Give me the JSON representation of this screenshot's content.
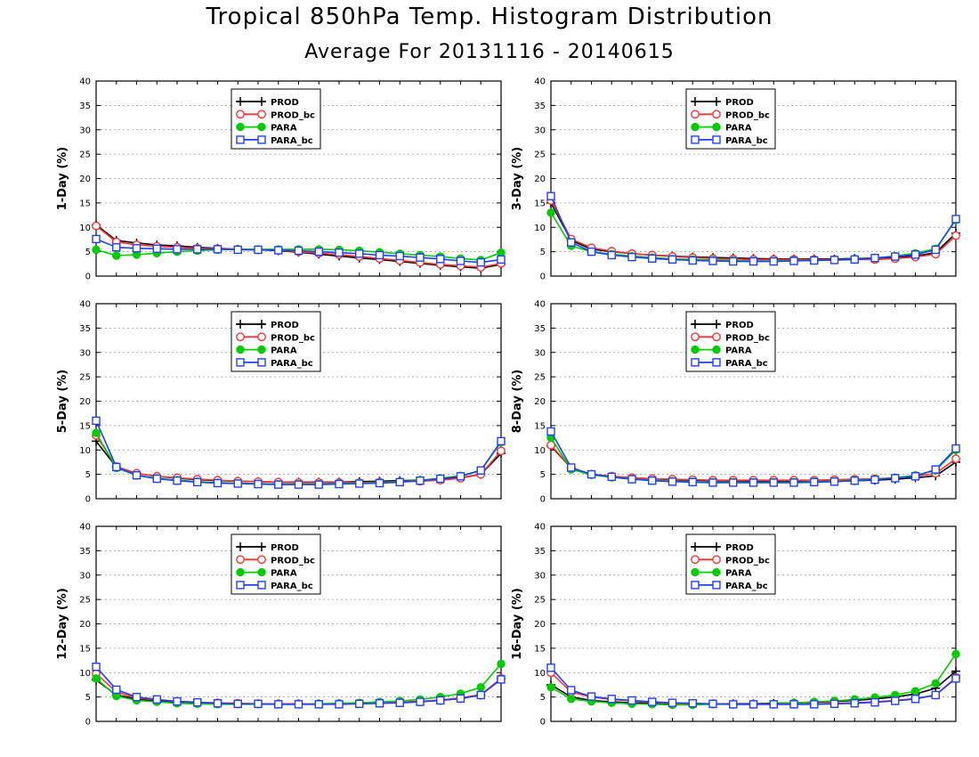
{
  "header": {
    "title": "Tropical 850hPa Temp. Histogram Distribution",
    "subtitle": "Average For 20131116 - 20140615"
  },
  "style": {
    "colors": {
      "PROD": "#000000",
      "PROD_bc": "#ff3333",
      "PARA": "#00cc00",
      "PARA_bc": "#1f3fff"
    },
    "markers": {
      "PROD": "plus",
      "PROD_bc": "open-circle",
      "PARA": "filled-circle",
      "PARA_bc": "open-square"
    }
  },
  "chart_data": [
    {
      "type": "line",
      "ylabel": "1-Day (%)",
      "ylim": [
        0,
        40
      ],
      "yticks": [
        0,
        5,
        10,
        15,
        20,
        25,
        30,
        35,
        40
      ],
      "grid": true,
      "legend": "top-center",
      "x": [
        1,
        2,
        3,
        4,
        5,
        6,
        7,
        8,
        9,
        10,
        11,
        12,
        13,
        14,
        15,
        16,
        17,
        18,
        19,
        20,
        21
      ],
      "series": [
        {
          "name": "PROD",
          "values": [
            10.5,
            7.3,
            6.8,
            6.4,
            6.2,
            5.9,
            5.7,
            5.5,
            5.4,
            5.2,
            4.9,
            4.5,
            4.1,
            3.7,
            3.4,
            3.0,
            2.6,
            2.2,
            1.9,
            1.6,
            2.4
          ]
        },
        {
          "name": "PROD_bc",
          "values": [
            10.3,
            7.0,
            6.4,
            6.1,
            5.9,
            5.7,
            5.6,
            5.5,
            5.4,
            5.3,
            5.0,
            4.7,
            4.4,
            4.0,
            3.6,
            3.2,
            2.8,
            2.4,
            2.1,
            1.8,
            2.6
          ]
        },
        {
          "name": "PARA",
          "values": [
            5.4,
            4.2,
            4.4,
            4.7,
            5.0,
            5.2,
            5.4,
            5.5,
            5.5,
            5.5,
            5.5,
            5.5,
            5.4,
            5.2,
            4.9,
            4.6,
            4.3,
            4.0,
            3.6,
            3.3,
            4.8
          ]
        },
        {
          "name": "PARA_bc",
          "values": [
            7.6,
            5.9,
            5.7,
            5.6,
            5.5,
            5.5,
            5.5,
            5.4,
            5.4,
            5.3,
            5.2,
            5.0,
            4.8,
            4.6,
            4.3,
            4.1,
            3.8,
            3.5,
            3.1,
            2.8,
            3.4
          ]
        }
      ]
    },
    {
      "type": "line",
      "ylabel": "3-Day (%)",
      "ylim": [
        0,
        40
      ],
      "yticks": [
        0,
        5,
        10,
        15,
        20,
        25,
        30,
        35,
        40
      ],
      "grid": true,
      "legend": "top-center",
      "x": [
        1,
        2,
        3,
        4,
        5,
        6,
        7,
        8,
        9,
        10,
        11,
        12,
        13,
        14,
        15,
        16,
        17,
        18,
        19,
        20,
        21
      ],
      "series": [
        {
          "name": "PROD",
          "values": [
            15.0,
            7.3,
            5.5,
            5.0,
            4.6,
            4.3,
            4.1,
            3.9,
            3.8,
            3.7,
            3.6,
            3.5,
            3.5,
            3.5,
            3.5,
            3.6,
            3.7,
            3.8,
            4.1,
            4.8,
            8.8
          ]
        },
        {
          "name": "PROD_bc",
          "values": [
            15.5,
            7.6,
            5.8,
            5.1,
            4.6,
            4.3,
            4.0,
            3.8,
            3.6,
            3.5,
            3.4,
            3.4,
            3.4,
            3.4,
            3.4,
            3.4,
            3.4,
            3.6,
            3.9,
            4.5,
            8.3
          ]
        },
        {
          "name": "PARA",
          "values": [
            13.0,
            6.2,
            5.0,
            4.5,
            4.1,
            3.8,
            3.5,
            3.4,
            3.3,
            3.2,
            3.1,
            3.1,
            3.2,
            3.2,
            3.3,
            3.5,
            3.7,
            4.1,
            4.7,
            5.6,
            11.5
          ]
        },
        {
          "name": "PARA_bc",
          "values": [
            16.4,
            6.9,
            5.0,
            4.3,
            3.9,
            3.6,
            3.4,
            3.2,
            3.1,
            3.0,
            3.0,
            3.0,
            3.1,
            3.2,
            3.3,
            3.4,
            3.7,
            4.0,
            4.4,
            5.4,
            11.7
          ]
        }
      ]
    },
    {
      "type": "line",
      "ylabel": "5-Day (%)",
      "ylim": [
        0,
        40
      ],
      "yticks": [
        0,
        5,
        10,
        15,
        20,
        25,
        30,
        35,
        40
      ],
      "grid": true,
      "legend": "top-center",
      "x": [
        1,
        2,
        3,
        4,
        5,
        6,
        7,
        8,
        9,
        10,
        11,
        12,
        13,
        14,
        15,
        16,
        17,
        18,
        19,
        20,
        21
      ],
      "series": [
        {
          "name": "PROD",
          "values": [
            11.8,
            6.5,
            5.2,
            4.6,
            4.2,
            3.9,
            3.7,
            3.6,
            3.5,
            3.4,
            3.4,
            3.4,
            3.4,
            3.5,
            3.6,
            3.7,
            3.8,
            4.0,
            4.3,
            5.0,
            9.3
          ]
        },
        {
          "name": "PROD_bc",
          "values": [
            13.0,
            6.6,
            5.2,
            4.6,
            4.3,
            4.0,
            3.8,
            3.6,
            3.5,
            3.4,
            3.3,
            3.3,
            3.3,
            3.3,
            3.4,
            3.5,
            3.6,
            3.8,
            4.2,
            5.0,
            9.8
          ]
        },
        {
          "name": "PARA",
          "values": [
            13.5,
            6.3,
            4.8,
            4.2,
            3.8,
            3.5,
            3.3,
            3.2,
            3.1,
            3.0,
            3.0,
            3.0,
            3.1,
            3.2,
            3.3,
            3.5,
            3.8,
            4.2,
            4.7,
            5.8,
            11.6
          ]
        },
        {
          "name": "PARA_bc",
          "values": [
            16.0,
            6.5,
            4.8,
            4.1,
            3.7,
            3.4,
            3.2,
            3.1,
            3.0,
            2.9,
            2.9,
            2.9,
            3.0,
            3.1,
            3.2,
            3.4,
            3.7,
            4.1,
            4.6,
            5.8,
            11.8
          ]
        }
      ]
    },
    {
      "type": "line",
      "ylabel": "8-Day (%)",
      "ylim": [
        0,
        40
      ],
      "yticks": [
        0,
        5,
        10,
        15,
        20,
        25,
        30,
        35,
        40
      ],
      "grid": true,
      "legend": "top-center",
      "x": [
        1,
        2,
        3,
        4,
        5,
        6,
        7,
        8,
        9,
        10,
        11,
        12,
        13,
        14,
        15,
        16,
        17,
        18,
        19,
        20,
        21
      ],
      "series": [
        {
          "name": "PROD",
          "values": [
            10.8,
            6.3,
            5.0,
            4.6,
            4.3,
            4.1,
            3.9,
            3.8,
            3.7,
            3.7,
            3.6,
            3.6,
            3.6,
            3.6,
            3.6,
            3.7,
            3.8,
            4.0,
            4.3,
            4.7,
            7.5
          ]
        },
        {
          "name": "PROD_bc",
          "values": [
            11.0,
            6.3,
            5.0,
            4.6,
            4.3,
            4.1,
            4.0,
            3.9,
            3.8,
            3.8,
            3.8,
            3.8,
            3.8,
            3.8,
            3.9,
            4.0,
            4.1,
            4.3,
            4.6,
            5.2,
            8.2
          ]
        },
        {
          "name": "PARA",
          "values": [
            12.5,
            6.0,
            4.9,
            4.4,
            4.0,
            3.8,
            3.6,
            3.5,
            3.4,
            3.4,
            3.4,
            3.4,
            3.4,
            3.5,
            3.6,
            3.8,
            4.0,
            4.3,
            4.8,
            5.8,
            10.0
          ]
        },
        {
          "name": "PARA_bc",
          "values": [
            13.8,
            6.4,
            5.0,
            4.5,
            4.0,
            3.7,
            3.5,
            3.4,
            3.3,
            3.3,
            3.3,
            3.3,
            3.3,
            3.4,
            3.5,
            3.7,
            3.9,
            4.2,
            4.6,
            6.0,
            10.3
          ]
        }
      ]
    },
    {
      "type": "line",
      "ylabel": "12-Day (%)",
      "ylim": [
        0,
        40
      ],
      "yticks": [
        0,
        5,
        10,
        15,
        20,
        25,
        30,
        35,
        40
      ],
      "grid": true,
      "legend": "top-center",
      "x": [
        1,
        2,
        3,
        4,
        5,
        6,
        7,
        8,
        9,
        10,
        11,
        12,
        13,
        14,
        15,
        16,
        17,
        18,
        19,
        20,
        21
      ],
      "series": [
        {
          "name": "PROD",
          "values": [
            8.5,
            5.4,
            4.6,
            4.2,
            4.0,
            3.8,
            3.7,
            3.6,
            3.6,
            3.6,
            3.6,
            3.6,
            3.6,
            3.7,
            3.8,
            3.9,
            4.1,
            4.3,
            4.7,
            5.4,
            8.7
          ]
        },
        {
          "name": "PROD_bc",
          "values": [
            9.8,
            6.0,
            4.8,
            4.4,
            4.1,
            3.9,
            3.8,
            3.7,
            3.6,
            3.6,
            3.6,
            3.6,
            3.6,
            3.7,
            3.8,
            3.9,
            4.1,
            4.4,
            4.8,
            5.5,
            8.8
          ]
        },
        {
          "name": "PARA",
          "values": [
            8.8,
            5.2,
            4.3,
            4.0,
            3.7,
            3.6,
            3.5,
            3.5,
            3.5,
            3.5,
            3.5,
            3.6,
            3.7,
            3.8,
            4.0,
            4.2,
            4.5,
            5.0,
            5.7,
            7.0,
            11.8
          ]
        },
        {
          "name": "PARA_bc",
          "values": [
            11.2,
            6.5,
            5.0,
            4.5,
            4.1,
            3.9,
            3.7,
            3.6,
            3.6,
            3.5,
            3.5,
            3.5,
            3.5,
            3.6,
            3.7,
            3.8,
            4.0,
            4.3,
            4.7,
            5.4,
            8.6
          ]
        }
      ]
    },
    {
      "type": "line",
      "ylabel": "16-Day (%)",
      "ylim": [
        0,
        40
      ],
      "yticks": [
        0,
        5,
        10,
        15,
        20,
        25,
        30,
        35,
        40
      ],
      "grid": true,
      "legend": "top-center",
      "x": [
        1,
        2,
        3,
        4,
        5,
        6,
        7,
        8,
        9,
        10,
        11,
        12,
        13,
        14,
        15,
        16,
        17,
        18,
        19,
        20,
        21
      ],
      "series": [
        {
          "name": "PROD",
          "values": [
            7.5,
            5.0,
            4.3,
            4.0,
            3.8,
            3.7,
            3.6,
            3.6,
            3.6,
            3.6,
            3.6,
            3.7,
            3.8,
            3.9,
            4.1,
            4.3,
            4.6,
            5.0,
            5.6,
            6.8,
            10.3
          ]
        },
        {
          "name": "PROD_bc",
          "values": [
            10.0,
            6.0,
            5.0,
            4.5,
            4.2,
            3.9,
            3.7,
            3.6,
            3.6,
            3.5,
            3.5,
            3.5,
            3.5,
            3.6,
            3.7,
            3.8,
            4.0,
            4.3,
            4.7,
            5.4,
            9.0
          ]
        },
        {
          "name": "PARA",
          "values": [
            7.0,
            4.6,
            4.1,
            3.8,
            3.6,
            3.5,
            3.4,
            3.4,
            3.5,
            3.5,
            3.5,
            3.6,
            3.8,
            4.0,
            4.2,
            4.5,
            4.9,
            5.4,
            6.2,
            7.8,
            13.8
          ]
        },
        {
          "name": "PARA_bc",
          "values": [
            11.0,
            6.4,
            5.1,
            4.6,
            4.3,
            4.0,
            3.8,
            3.7,
            3.6,
            3.5,
            3.5,
            3.5,
            3.5,
            3.5,
            3.6,
            3.7,
            3.9,
            4.2,
            4.6,
            5.4,
            8.8
          ]
        }
      ]
    }
  ]
}
